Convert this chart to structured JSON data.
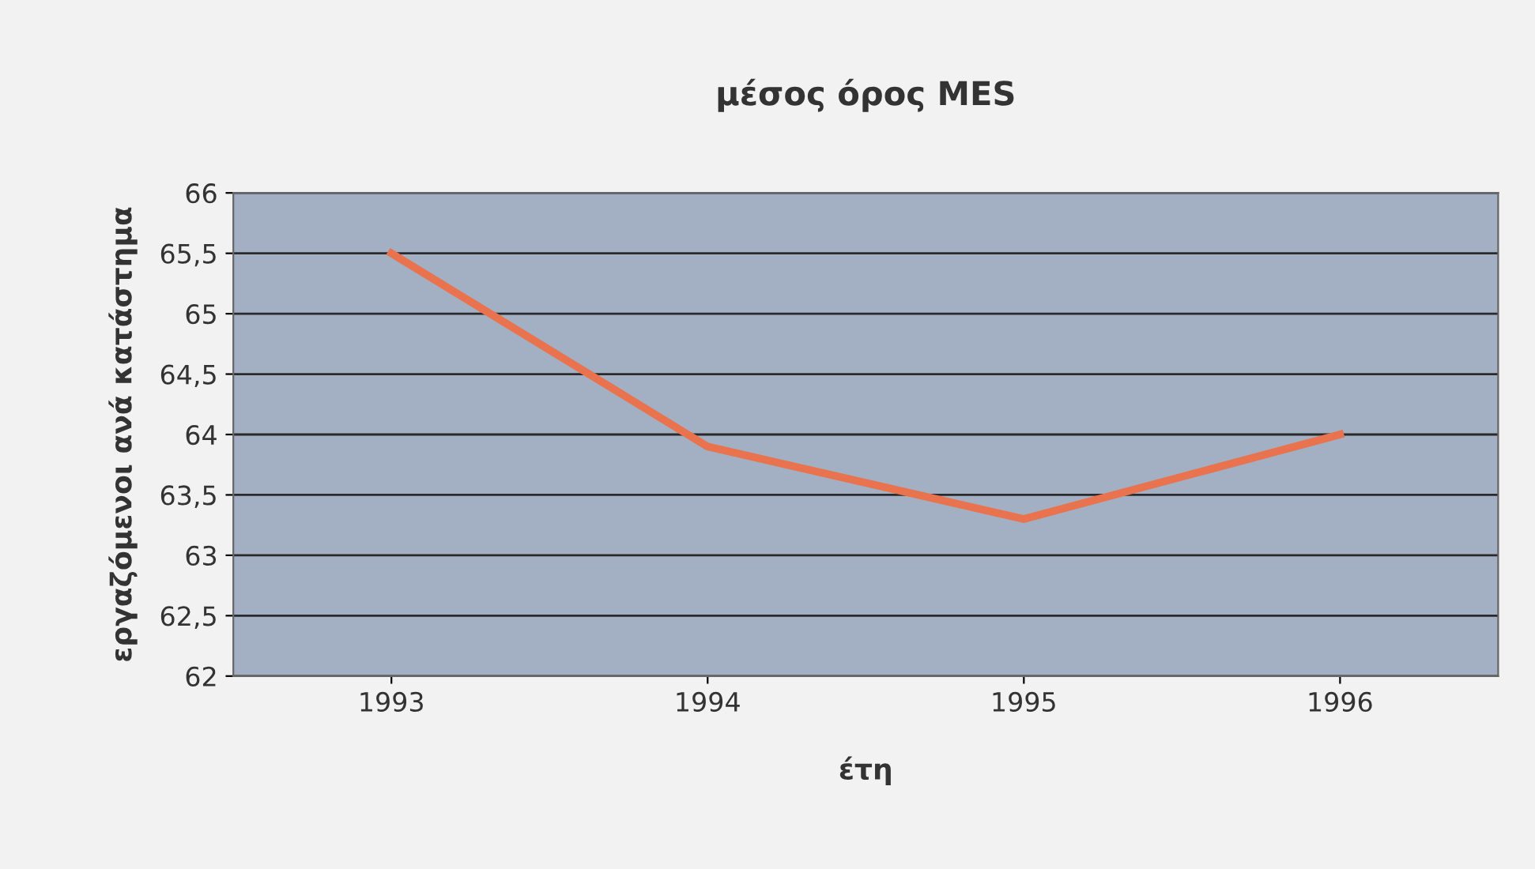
{
  "chart_data": {
    "type": "line",
    "title": "μέσος όρος MES",
    "xlabel": "έτη",
    "ylabel": "εργαζόμενοι ανά κατάστημα",
    "categories": [
      "1993",
      "1994",
      "1995",
      "1996"
    ],
    "series": [
      {
        "color": "#e8734e",
        "values": [
          65.5,
          63.9,
          63.3,
          64.0
        ]
      }
    ],
    "ylim": [
      62,
      66
    ],
    "yticks": [
      62,
      {
        "value": 62.5,
        "label": "62,5"
      },
      63,
      {
        "value": 63.5,
        "label": "63,5"
      },
      64,
      {
        "value": 64.5,
        "label": "64,5"
      },
      65,
      {
        "value": 65.5,
        "label": "65,5"
      },
      66
    ],
    "grid": "y",
    "legend": false,
    "marker": "none",
    "line_style": "solid"
  }
}
